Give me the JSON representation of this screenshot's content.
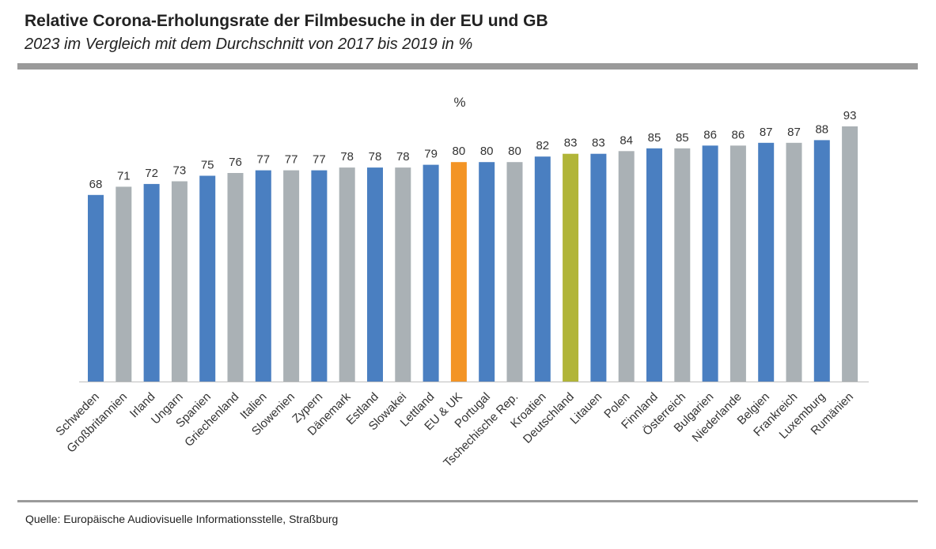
{
  "header": {
    "title": "Relative Corona-Erholungsrate der Filmbesuche in der EU und GB",
    "subtitle": "2023 im Vergleich mit dem Durchschnitt von 2017 bis 2019 in %"
  },
  "footer": {
    "source": "Quelle: Europäische Audiovisuelle Informationsstelle, Straßburg"
  },
  "colors": {
    "blue": "#4a7fc1",
    "gray": "#aab1b5",
    "orange": "#f39425",
    "olive": "#b1b538",
    "axis": "#bfbfbf"
  },
  "chart_data": {
    "type": "bar",
    "title": "Relative Corona-Erholungsrate der Filmbesuche in der EU und GB",
    "subtitle": "2023 im Vergleich mit dem Durchschnitt von 2017 bis 2019 in %",
    "unit_label": "%",
    "xlabel": "",
    "ylabel": "%",
    "ylim": [
      0,
      93
    ],
    "grid": false,
    "categories": [
      "Schweden",
      "Großbritannien",
      "Irland",
      "Ungarn",
      "Spanien",
      "Griechenland",
      "Italien",
      "Slowenien",
      "Zypern",
      "Dänemark",
      "Estland",
      "Slowakei",
      "Lettland",
      "EU & UK",
      "Portugal",
      "Tschechische Rep.",
      "Kroatien",
      "Deutschland",
      "Litauen",
      "Polen",
      "Finnland",
      "Österreich",
      "Bulgarien",
      "Niederlande",
      "Belgien",
      "Frankreich",
      "Luxemburg",
      "Rumänien"
    ],
    "values": [
      68,
      71,
      72,
      73,
      75,
      76,
      77,
      77,
      77,
      78,
      78,
      78,
      79,
      80,
      80,
      80,
      82,
      83,
      83,
      84,
      85,
      85,
      86,
      86,
      87,
      87,
      88,
      93
    ],
    "bar_colors": [
      "blue",
      "gray",
      "blue",
      "gray",
      "blue",
      "gray",
      "blue",
      "gray",
      "blue",
      "gray",
      "blue",
      "gray",
      "blue",
      "orange",
      "blue",
      "gray",
      "blue",
      "olive",
      "blue",
      "gray",
      "blue",
      "gray",
      "blue",
      "gray",
      "blue",
      "gray",
      "blue",
      "gray"
    ]
  }
}
